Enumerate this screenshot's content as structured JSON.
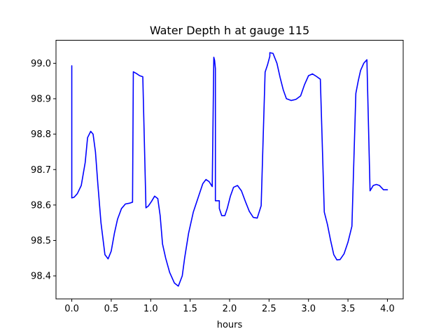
{
  "chart_data": {
    "type": "line",
    "title": "Water Depth h at gauge 115",
    "xlabel": "hours",
    "ylabel": "",
    "xlim": [
      -0.2,
      4.2
    ],
    "ylim": [
      98.335,
      99.065
    ],
    "xticks": [
      0.0,
      0.5,
      1.0,
      1.5,
      2.0,
      2.5,
      3.0,
      3.5,
      4.0
    ],
    "xtick_labels": [
      "0.0",
      "0.5",
      "1.0",
      "1.5",
      "2.0",
      "2.5",
      "3.0",
      "3.5",
      "4.0"
    ],
    "yticks": [
      98.4,
      98.5,
      98.6,
      98.7,
      98.8,
      98.9,
      99.0
    ],
    "ytick_labels": [
      "98.4",
      "98.5",
      "98.6",
      "98.7",
      "98.8",
      "98.9",
      "99.0"
    ],
    "grid": false,
    "series": [
      {
        "name": "",
        "color": "#0000ff",
        "x": [
          0.0,
          0.0,
          0.03,
          0.07,
          0.12,
          0.17,
          0.2,
          0.24,
          0.27,
          0.3,
          0.33,
          0.37,
          0.42,
          0.46,
          0.5,
          0.54,
          0.58,
          0.63,
          0.68,
          0.73,
          0.77,
          0.78,
          0.78,
          0.82,
          0.86,
          0.9,
          0.94,
          0.94,
          0.97,
          1.01,
          1.05,
          1.09,
          1.12,
          1.15,
          1.19,
          1.24,
          1.3,
          1.35,
          1.4,
          1.43,
          1.48,
          1.54,
          1.6,
          1.66,
          1.7,
          1.74,
          1.78,
          1.8,
          1.81,
          1.82,
          1.82,
          1.87,
          1.87,
          1.9,
          1.94,
          1.97,
          2.01,
          2.05,
          2.1,
          2.15,
          2.2,
          2.25,
          2.3,
          2.35,
          2.4,
          2.45,
          2.48,
          2.51,
          2.51,
          2.55,
          2.6,
          2.64,
          2.68,
          2.72,
          2.78,
          2.84,
          2.9,
          2.95,
          3.0,
          3.05,
          3.1,
          3.15,
          3.2,
          3.2,
          3.24,
          3.28,
          3.32,
          3.36,
          3.4,
          3.45,
          3.5,
          3.55,
          3.6,
          3.6,
          3.63,
          3.66,
          3.7,
          3.74,
          3.78,
          3.78,
          3.82,
          3.86,
          3.9,
          3.95,
          4.0
        ],
        "y": [
          98.993,
          98.62,
          98.622,
          98.632,
          98.655,
          98.72,
          98.79,
          98.808,
          98.8,
          98.75,
          98.66,
          98.55,
          98.46,
          98.448,
          98.47,
          98.52,
          98.56,
          98.59,
          98.603,
          98.605,
          98.608,
          98.976,
          98.976,
          98.971,
          98.965,
          98.962,
          98.592,
          98.592,
          98.597,
          98.61,
          98.625,
          98.618,
          98.57,
          98.49,
          98.45,
          98.41,
          98.38,
          98.371,
          98.4,
          98.45,
          98.52,
          98.58,
          98.62,
          98.66,
          98.672,
          98.666,
          98.652,
          99.017,
          99.008,
          98.985,
          98.612,
          98.612,
          98.59,
          98.57,
          98.57,
          98.59,
          98.625,
          98.65,
          98.655,
          98.64,
          98.61,
          98.582,
          98.565,
          98.563,
          98.598,
          98.975,
          98.995,
          99.02,
          99.03,
          99.028,
          99.0,
          98.96,
          98.925,
          98.9,
          98.895,
          98.898,
          98.908,
          98.94,
          98.965,
          98.97,
          98.963,
          98.955,
          98.58,
          98.58,
          98.545,
          98.5,
          98.46,
          98.445,
          98.446,
          98.462,
          98.495,
          98.54,
          98.915,
          98.915,
          98.95,
          98.98,
          99.0,
          99.01,
          98.64,
          98.64,
          98.655,
          98.658,
          98.655,
          98.643,
          98.643
        ]
      }
    ]
  }
}
